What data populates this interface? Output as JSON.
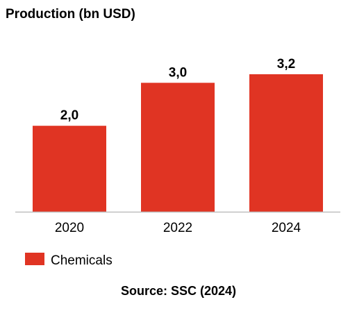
{
  "chart_data": {
    "type": "bar",
    "title": "Production (bn USD)",
    "categories": [
      "2020",
      "2022",
      "2024"
    ],
    "series": [
      {
        "name": "Chemicals",
        "values": [
          2.0,
          3.0,
          3.2
        ],
        "value_labels": [
          "2,0",
          "3,0",
          "3,2"
        ],
        "color": "#e03423"
      }
    ],
    "ylim": [
      0,
      4.2
    ],
    "grid": false,
    "legend": "bottom-left",
    "source": "Source: SSC (2024)"
  },
  "colors": {
    "bar": "#e03423",
    "axis": "#bfbfbf",
    "text": "#000000"
  }
}
